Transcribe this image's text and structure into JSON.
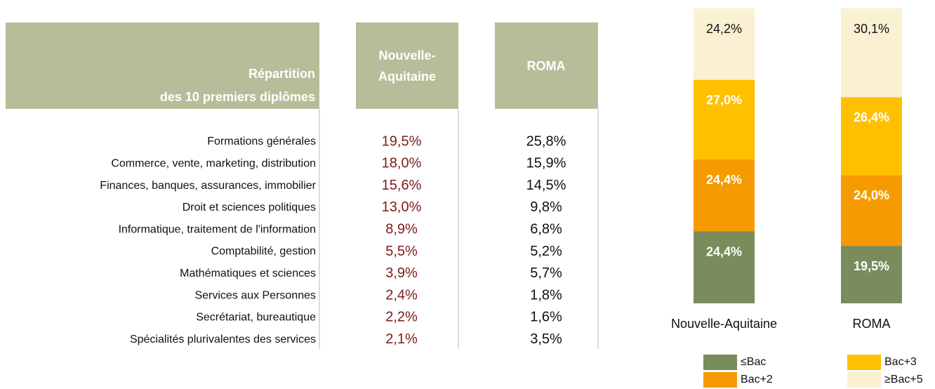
{
  "table": {
    "header": {
      "title": [
        "Répartition",
        "des 10 premiers diplômes"
      ],
      "columns": [
        [
          "Nouvelle-",
          "Aquitaine"
        ],
        [
          "ROMA"
        ]
      ]
    },
    "rows": [
      [
        "Formations générales",
        "19,5%",
        "25,8%"
      ],
      [
        "Commerce, vente, marketing, distribution",
        "18,0%",
        "15,9%"
      ],
      [
        "Finances, banques, assurances, immobilier",
        "15,6%",
        "14,5%"
      ],
      [
        "Droit et sciences politiques",
        "13,0%",
        "9,8%"
      ],
      [
        "Informatique, traitement de l'information",
        "8,9%",
        "6,8%"
      ],
      [
        "Comptabilité, gestion",
        "5,5%",
        "5,2%"
      ],
      [
        "Mathématiques et sciences",
        "3,9%",
        "5,7%"
      ],
      [
        "Services aux Personnes",
        "2,4%",
        "1,8%"
      ],
      [
        "Secrétariat, bureautique",
        "2,2%",
        "1,6%"
      ],
      [
        "Spécialités plurivalentes des services",
        "2,1%",
        "3,5%"
      ]
    ]
  },
  "chart_data": {
    "type": "stacked_bar",
    "categories": [
      "Nouvelle-Aquitaine",
      "ROMA"
    ],
    "ylim": [
      0,
      100
    ],
    "series": [
      {
        "name": "≤Bac",
        "color": "#7a8c5c",
        "values": [
          24.4,
          19.5
        ],
        "value_labels": [
          "24,4%",
          "19,5%"
        ]
      },
      {
        "name": "Bac+2",
        "color": "#f59b00",
        "values": [
          24.4,
          24.0
        ],
        "value_labels": [
          "24,4%",
          "24,0%"
        ]
      },
      {
        "name": "Bac+3",
        "color": "#ffc000",
        "values": [
          27.0,
          26.4
        ],
        "value_labels": [
          "27,0%",
          "26,4%"
        ]
      },
      {
        "name": "≥Bac+5",
        "color": "#faf0d2",
        "values": [
          24.2,
          30.1
        ],
        "value_labels": [
          "24,2%",
          "30,1%"
        ]
      }
    ]
  }
}
